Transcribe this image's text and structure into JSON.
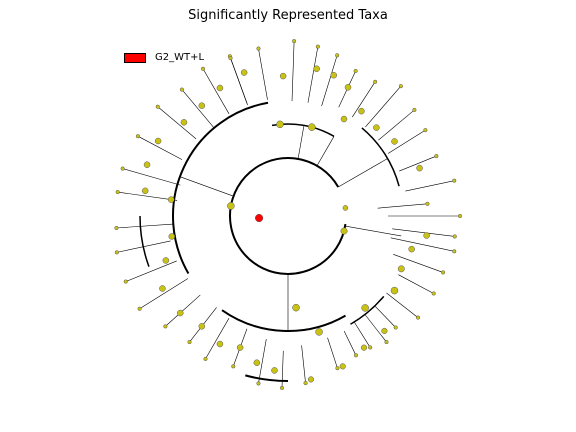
{
  "figure": {
    "title": "Significantly Represented Taxa",
    "legend": {
      "label": "G2_WT+L",
      "color": "#ff0000"
    },
    "colors": {
      "node_default": "#c9c214",
      "node_highlight": "#ff0000",
      "edge": "#000000"
    }
  }
}
